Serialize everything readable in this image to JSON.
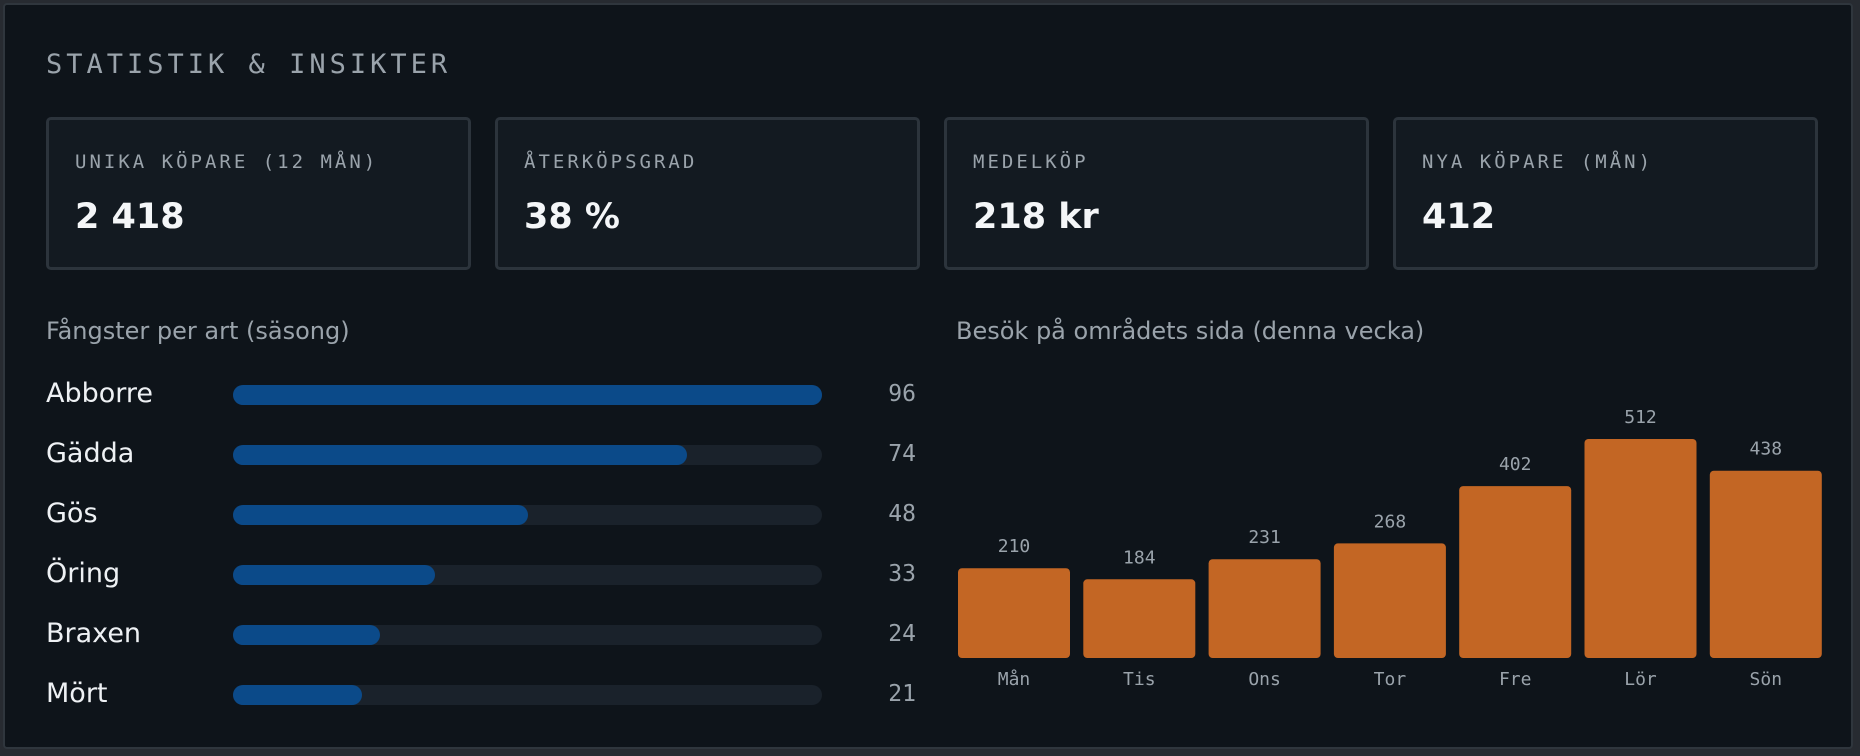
{
  "header": {
    "title": "STATISTIK & INSIKTER"
  },
  "kpis": [
    {
      "label": "UNIKA KÖPARE (12 MÅN)",
      "value": "2 418"
    },
    {
      "label": "ÅTERKÖPSGRAD",
      "value": "38 %"
    },
    {
      "label": "MEDELKÖP",
      "value": "218 kr"
    },
    {
      "label": "NYA KÖPARE (MÅN)",
      "value": "412"
    }
  ],
  "species_section": {
    "title": "Fångster per art (säsong)",
    "items": [
      {
        "name": "Abborre",
        "value": "96"
      },
      {
        "name": "Gädda",
        "value": "74"
      },
      {
        "name": "Gös",
        "value": "48"
      },
      {
        "name": "Öring",
        "value": "33"
      },
      {
        "name": "Braxen",
        "value": "24"
      },
      {
        "name": "Mört",
        "value": "21"
      }
    ],
    "bar_color": "#0b4a89",
    "track_color": "#1a222b"
  },
  "visits_section": {
    "title": "Besök på områdets sida (denna vecka)"
  },
  "chart_data": {
    "type": "bar",
    "title": "Besök på områdets sida (denna vecka)",
    "categories": [
      "Mån",
      "Tis",
      "Ons",
      "Tor",
      "Fre",
      "Lör",
      "Sön"
    ],
    "values": [
      210,
      184,
      231,
      268,
      402,
      512,
      438
    ],
    "value_labels": [
      "210",
      "184",
      "231",
      "268",
      "402",
      "512",
      "438"
    ],
    "xlabel": "",
    "ylabel": "",
    "ylim": [
      0,
      512
    ],
    "grid": false,
    "bar_color": "#c36624"
  }
}
